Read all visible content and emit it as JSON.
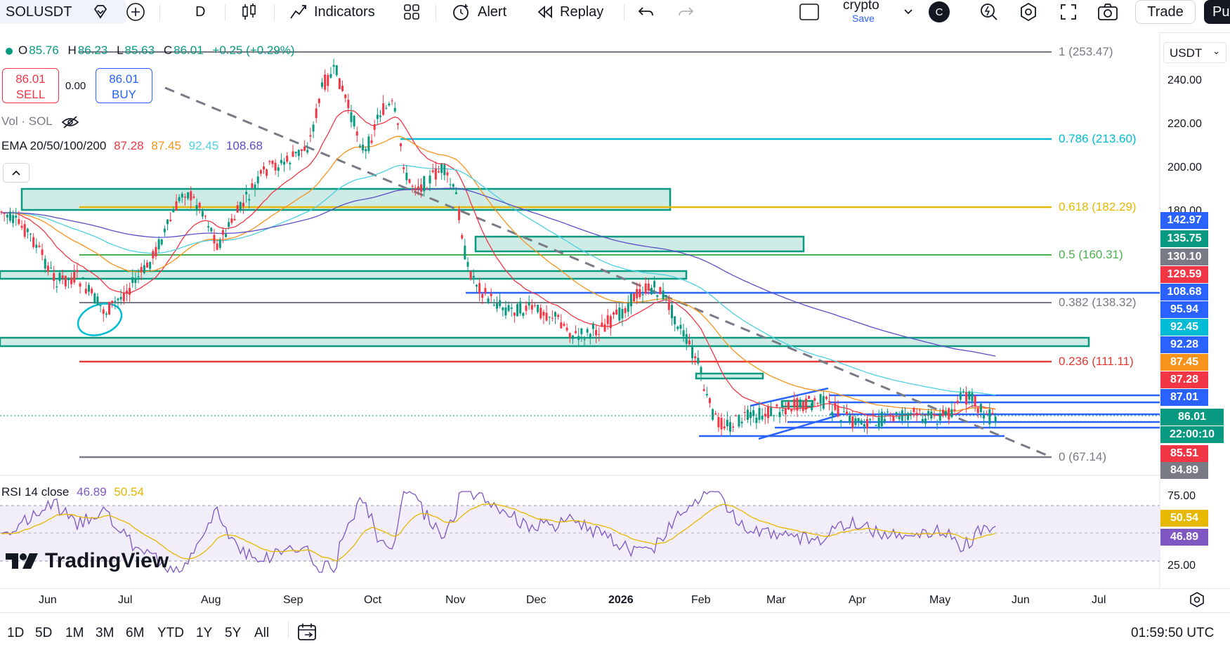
{
  "toolbar": {
    "symbol": "SOLUSDT",
    "interval": "D",
    "indicators": "Indicators",
    "alert": "Alert",
    "replay": "Replay",
    "layout_name": "crypto",
    "layout_save": "Save",
    "avatar": "C",
    "trade": "Trade",
    "publish": "Pu"
  },
  "legend": {
    "ohlc": {
      "o_label": "O",
      "o": "85.76",
      "h_label": "H",
      "h": "86.23",
      "l_label": "L",
      "l": "85.63",
      "c_label": "C",
      "c": "86.01",
      "change": "+0.25 (+0.29%)"
    },
    "sell_price": "86.01",
    "sell_label": "SELL",
    "spread": "0.00",
    "buy_price": "86.01",
    "buy_label": "BUY",
    "vol": "Vol · SOL",
    "ema_label": "EMA 20/50/100/200",
    "ema20": "87.28",
    "ema50": "87.45",
    "ema100": "92.45",
    "ema200": "108.68",
    "collapse_icon": "chevron-up"
  },
  "colors": {
    "up": "#089981",
    "down": "#f23645",
    "ema20": "#f23645",
    "ema50": "#f7931a",
    "ema100": "#4dd0e1",
    "ema200": "#5b4fc7",
    "zone": "#089981",
    "blue": "#2962ff",
    "fib_gray": "#787b86",
    "fib_teal": "#00bcd4",
    "fib_gold": "#e6b800",
    "fib_green": "#4caf50",
    "fib_red": "#e53935"
  },
  "fib": [
    {
      "label": "1 (253.47)",
      "color": "#787b86"
    },
    {
      "label": "0.786 (213.60)",
      "color": "#00bcd4"
    },
    {
      "label": "0.618 (182.29)",
      "color": "#e6b800"
    },
    {
      "label": "0.5 (160.31)",
      "color": "#4caf50"
    },
    {
      "label": "0.382 (138.32)",
      "color": "#787b86"
    },
    {
      "label": "0.236 (111.11)",
      "color": "#e53935"
    },
    {
      "label": "0 (67.14)",
      "color": "#787b86"
    }
  ],
  "price_axis": {
    "currency": "USDT",
    "ticks": [
      "240.00",
      "220.00",
      "200.00",
      "180.00"
    ],
    "tags": [
      {
        "value": "142.97",
        "color": "#2962ff"
      },
      {
        "value": "135.75",
        "color": "#089981"
      },
      {
        "value": "130.10",
        "color": "#787b86"
      },
      {
        "value": "129.59",
        "color": "#f23645"
      },
      {
        "value": "108.68",
        "color": "#2962ff"
      },
      {
        "value": "95.94",
        "color": "#2962ff"
      },
      {
        "value": "92.45",
        "color": "#00bcd4"
      },
      {
        "value": "92.28",
        "color": "#2962ff"
      },
      {
        "value": "87.45",
        "color": "#f7931a"
      },
      {
        "value": "87.28",
        "color": "#f23645"
      },
      {
        "value": "87.01",
        "color": "#2962ff"
      },
      {
        "value": "86.01",
        "color": "#089981"
      },
      {
        "value": "22:00:10",
        "color": "#089981"
      },
      {
        "value": "85.51",
        "color": "#f23645"
      },
      {
        "value": "84.89",
        "color": "#787b86"
      }
    ]
  },
  "rsi": {
    "label": "RSI 14 close",
    "value": "46.89",
    "ma": "50.54",
    "ticks": [
      "75.00",
      "25.00"
    ]
  },
  "time_axis": [
    "Jun",
    "Jul",
    "Aug",
    "Sep",
    "Oct",
    "Nov",
    "Dec",
    "2026",
    "Feb",
    "Mar",
    "Apr",
    "May",
    "Jun",
    "Jul"
  ],
  "timeframes": [
    "1D",
    "5D",
    "1M",
    "3M",
    "6M",
    "YTD",
    "1Y",
    "5Y",
    "All"
  ],
  "clock": "01:59:50 UTC",
  "brand": "TradingView"
}
